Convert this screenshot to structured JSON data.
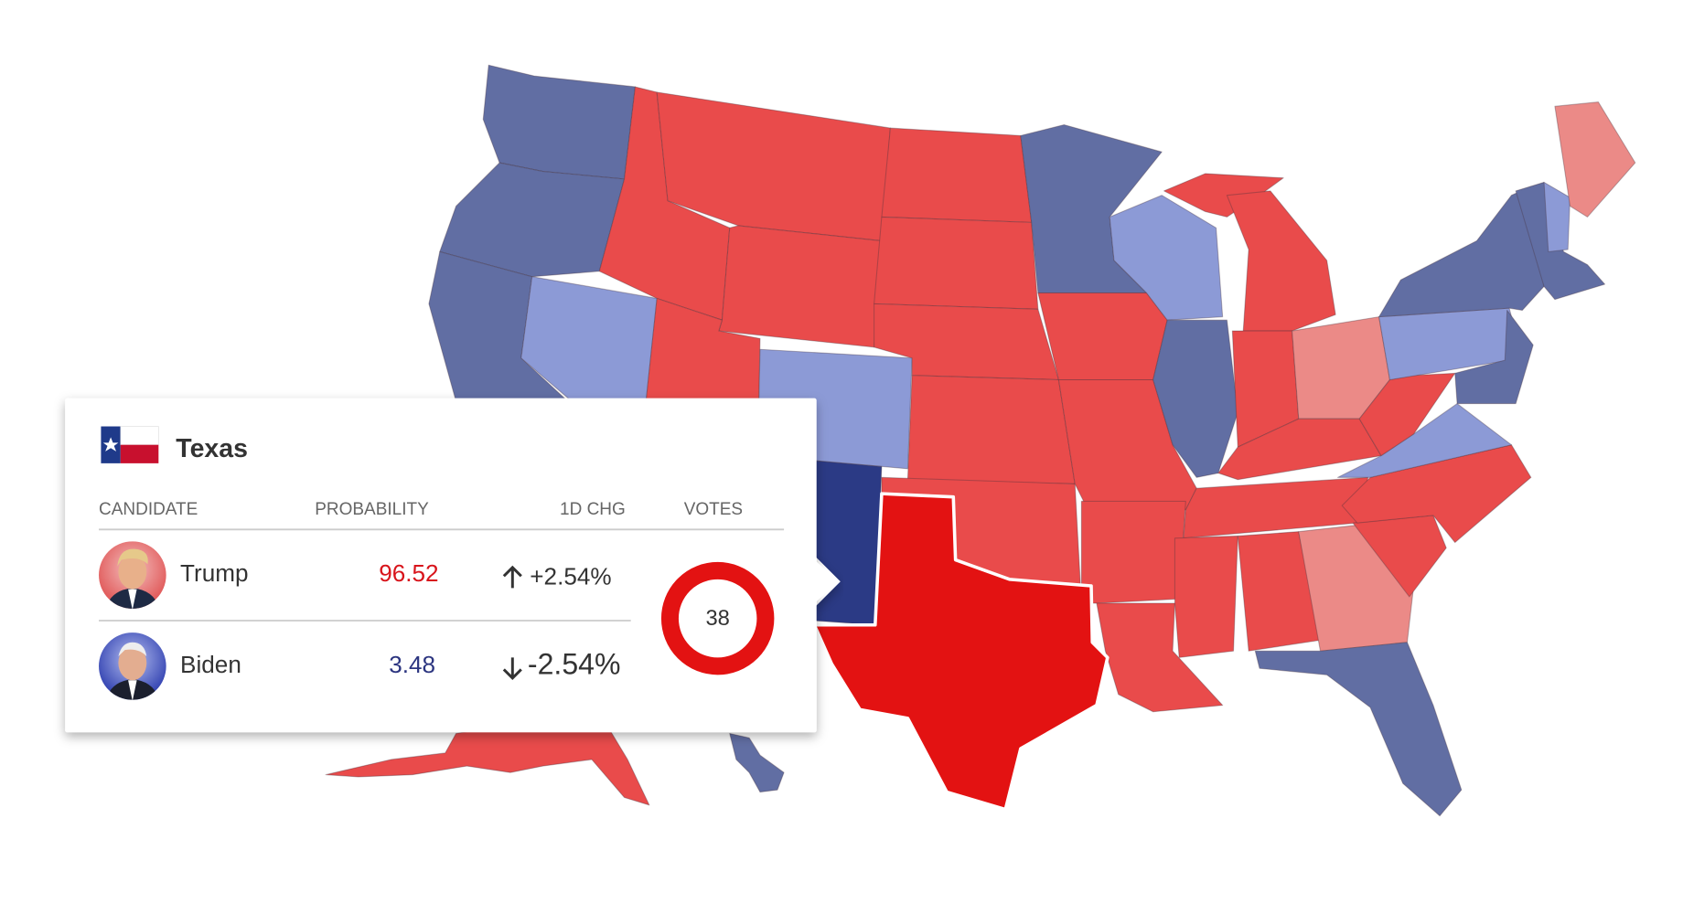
{
  "tooltip": {
    "state": "Texas",
    "headers": [
      "CANDIDATE",
      "PROBABILITY",
      "1D CHG",
      "VOTES"
    ],
    "rows": [
      {
        "name": "Trump",
        "probability": 96.52,
        "change": "+2.54%"
      },
      {
        "name": "Biden",
        "probability": 3.48,
        "change": "-2.54%"
      }
    ],
    "votes": 38
  }
}
